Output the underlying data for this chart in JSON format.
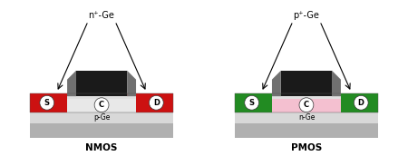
{
  "fig_width": 4.5,
  "fig_height": 1.72,
  "dpi": 100,
  "bg_color": "#ffffff",
  "nmos": {
    "label": "NMOS",
    "top_label": "n⁺-Ge",
    "substrate_color": "#b0b0b0",
    "body_color": "#e0e0e0",
    "sd_color": "#cc1111",
    "channel_recess_color": "#e8e8e8",
    "gate_metal_color": "#1a1a1a",
    "spacer_color": "#909090",
    "channel_label": "p-Ge",
    "s_label": "S",
    "d_label": "D",
    "c_label": "C"
  },
  "pmos": {
    "label": "PMOS",
    "top_label": "p⁺-Ge",
    "substrate_color": "#b0b0b0",
    "body_color": "#f4c0d0",
    "sd_color": "#228B22",
    "channel_recess_color": "#f4c0d0",
    "gate_metal_color": "#1a1a1a",
    "spacer_color": "#909090",
    "channel_label": "n-Ge",
    "s_label": "S",
    "d_label": "D",
    "c_label": "C"
  }
}
